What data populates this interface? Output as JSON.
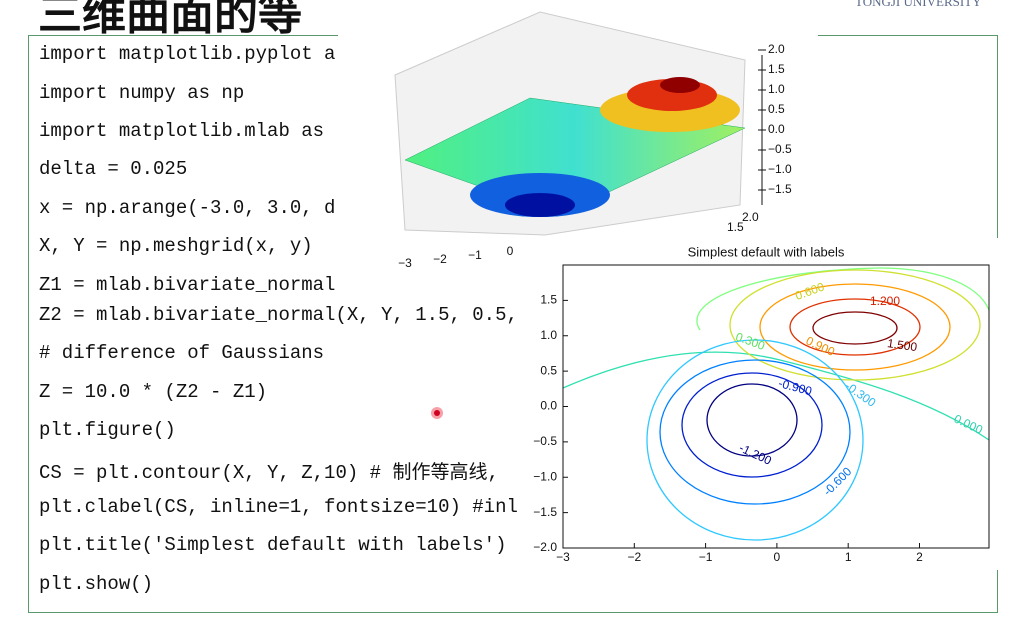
{
  "header": {
    "title": "三维曲面的等",
    "logo": "TONGJI UNIVERSITY"
  },
  "code": [
    "import matplotlib.pyplot a",
    "import numpy as np",
    "import matplotlib.mlab as",
    "delta = 0.025",
    "x = np.arange(-3.0, 3.0, d",
    "X, Y = np.meshgrid(x, y)",
    "Z1 = mlab.bivariate_normal",
    "Z2 = mlab.bivariate_normal(X, Y, 1.5, 0.5,",
    "# difference of Gaussians",
    "Z = 10.0 * (Z2 - Z1)",
    "plt.figure()",
    "CS = plt.contour(X, Y, Z,10) # 制作等高线,",
    "plt.clabel(CS, inline=1, fontsize=10) #inl",
    "plt.title('Simplest default with labels')",
    "plt.show()"
  ],
  "surface_plot": {
    "zticks": [
      {
        "value": 2,
        "label": "2.0"
      },
      1.5,
      {
        "value": 1,
        "label": "1.0"
      },
      0.5,
      {
        "value": 0,
        "label": "0.0"
      },
      {
        "value": -0.5,
        "label": "−0.5"
      },
      {
        "value": -1,
        "label": "−1.0"
      },
      {
        "value": -1.5,
        "label": "−1.5"
      }
    ],
    "xticks": [
      {
        "value": -3,
        "label": "−3"
      },
      {
        "value": -2,
        "label": "−2"
      },
      {
        "value": -1,
        "label": "−1"
      },
      0
    ],
    "yticks": [
      1.5,
      {
        "value": 2,
        "label": "2.0"
      }
    ]
  },
  "contour_plot": {
    "title": "Simplest default with labels",
    "xlim": [
      -3,
      2.975
    ],
    "ylim": [
      -2,
      2
    ],
    "xticks": [
      {
        "value": -3,
        "label": "−3"
      },
      {
        "value": -2,
        "label": "−2"
      },
      {
        "value": -1,
        "label": "−1"
      },
      0,
      1,
      2
    ],
    "yticks": [
      1.5,
      {
        "value": 1,
        "label": "1.0"
      },
      0.5,
      {
        "value": 0,
        "label": "0.0"
      },
      {
        "value": -0.5,
        "label": "−0.5"
      },
      {
        "value": -1,
        "label": "−1.0"
      },
      {
        "value": -1.5,
        "label": "−1.5"
      },
      {
        "value": -2,
        "label": "−2.0"
      }
    ],
    "level_labels": [
      "0.600",
      "1.200",
      "1.500",
      "0.900",
      "0.300",
      "-0.900",
      "-0.300",
      "0.000",
      "-1.200",
      "-0.600"
    ]
  }
}
